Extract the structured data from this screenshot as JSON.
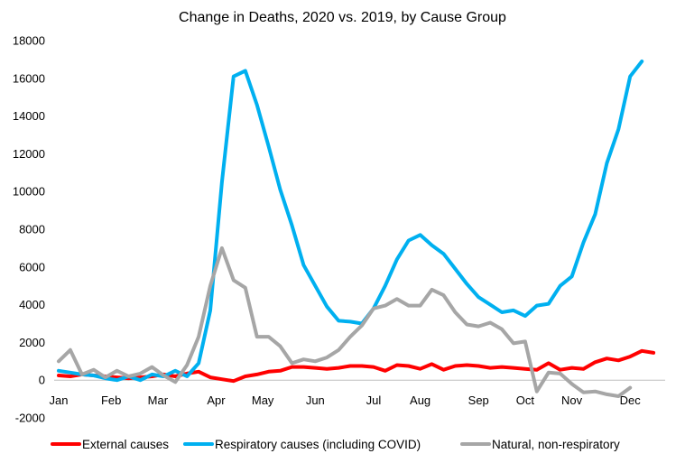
{
  "chart_data": {
    "type": "line",
    "title": "Change in Deaths, 2020 vs. 2019, by Cause Group",
    "xlabel": "",
    "ylabel": "",
    "ylim": [
      -2000,
      18000
    ],
    "yticks": [
      -2000,
      0,
      2000,
      4000,
      6000,
      8000,
      10000,
      12000,
      14000,
      16000,
      18000
    ],
    "x_month_labels": [
      "Jan",
      "Feb",
      "Mar",
      "Apr",
      "May",
      "Jun",
      "Jul",
      "Aug",
      "Sep",
      "Oct",
      "Nov",
      "Dec"
    ],
    "x_month_positions": [
      1,
      5.5,
      9.5,
      14.5,
      18.5,
      23,
      28,
      32,
      37,
      41,
      45,
      50
    ],
    "xlim": [
      1,
      53
    ],
    "grid": false,
    "legend_position": "bottom",
    "series": [
      {
        "name": "External causes",
        "color": "#ff0000",
        "values": [
          250,
          200,
          300,
          250,
          200,
          150,
          100,
          150,
          200,
          300,
          200,
          350,
          450,
          150,
          50,
          -50,
          200,
          300,
          450,
          500,
          700,
          700,
          650,
          600,
          650,
          750,
          750,
          700,
          500,
          800,
          750,
          600,
          850,
          550,
          750,
          800,
          750,
          650,
          700,
          650,
          600,
          550,
          900,
          550,
          650,
          600,
          950,
          1150,
          1050,
          1250,
          1550,
          1450
        ]
      },
      {
        "name": "Respiratory causes (including COVID)",
        "color": "#00b0f0",
        "values": [
          500,
          400,
          300,
          250,
          100,
          0,
          200,
          0,
          300,
          200,
          500,
          200,
          900,
          3700,
          10500,
          16100,
          16400,
          14600,
          12400,
          10100,
          8200,
          6100,
          5000,
          3900,
          3150,
          3100,
          3000,
          3800,
          5000,
          6400,
          7400,
          7700,
          7150,
          6700,
          5900,
          5100,
          4400,
          4000,
          3600,
          3700,
          3400,
          3950,
          4050,
          5000,
          5500,
          7300,
          8800,
          11500,
          13300,
          16100,
          16900
        ]
      },
      {
        "name": "Natural, non-respiratory",
        "color": "#a6a6a6",
        "values": [
          1000,
          1600,
          300,
          550,
          150,
          500,
          200,
          350,
          700,
          250,
          -100,
          800,
          2300,
          5000,
          7000,
          5300,
          4900,
          2300,
          2300,
          1800,
          900,
          1100,
          1000,
          1200,
          1600,
          2300,
          2900,
          3800,
          3950,
          4300,
          3950,
          3950,
          4800,
          4500,
          3600,
          2950,
          2850,
          3050,
          2700,
          1950,
          2050,
          -600,
          400,
          350,
          -200,
          -650,
          -600,
          -750,
          -850,
          -400
        ]
      }
    ]
  }
}
